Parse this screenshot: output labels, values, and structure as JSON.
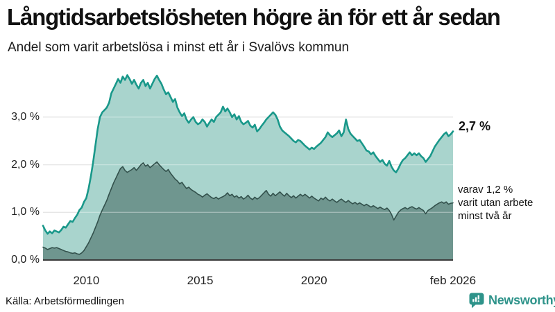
{
  "header": {
    "title": "Långtidsarbetslösheten högre än för ett år sedan",
    "subtitle": "Andel som varit arbetslösa i minst ett år i Svalövs kommun"
  },
  "footer": {
    "source": "Källa: Arbetsförmedlingen",
    "brand": "Newsworthy"
  },
  "colors": {
    "accent_teal": "#19988a",
    "fill_light": "#a9d4cd",
    "fill_dark": "#6f968f",
    "line_dark": "#33514c",
    "grid": "#d9d9d9",
    "axis_baseline": "#3b3b3b",
    "brand_teal": "#2e938a",
    "text": "#111111"
  },
  "chart_data": {
    "type": "area",
    "title": "Långtidsarbetslösheten högre än för ett år sedan",
    "subtitle": "Andel som varit arbetslösa i minst ett år i Svalövs kommun",
    "x_unit": "year (monthly observations)",
    "x_range": [
      2008.1,
      2026.1
    ],
    "x_step": 0.1,
    "ylim": [
      0,
      3.95
    ],
    "grid": true,
    "legend": "none (direct labels at line ends)",
    "x_tick_labels": [
      {
        "label": "2010",
        "year": 2010.0
      },
      {
        "label": "2015",
        "year": 2015.0
      },
      {
        "label": "2020",
        "year": 2020.0
      },
      {
        "label": "feb 2026",
        "year": 2026.1
      }
    ],
    "y_tick_labels": [
      {
        "label": "0,0 %",
        "value": 0
      },
      {
        "label": "1,0 %",
        "value": 1
      },
      {
        "label": "2,0 %",
        "value": 2
      },
      {
        "label": "3,0 %",
        "value": 3
      }
    ],
    "annotations": {
      "latest": "2,7 %",
      "secondary": [
        "varav 1,2 %",
        "varit utan arbete",
        "minst två år"
      ]
    },
    "series": [
      {
        "name": "arbetslösa minst ett år",
        "line_color": "#19988a",
        "fill_color": "#a9d4cd",
        "line_width": 2.6,
        "latest_value_pct": 2.7,
        "values": [
          0.72,
          0.62,
          0.55,
          0.6,
          0.56,
          0.62,
          0.6,
          0.58,
          0.63,
          0.7,
          0.68,
          0.75,
          0.82,
          0.8,
          0.88,
          0.95,
          1.05,
          1.1,
          1.22,
          1.3,
          1.5,
          1.75,
          2.05,
          2.4,
          2.75,
          3.0,
          3.1,
          3.15,
          3.2,
          3.3,
          3.5,
          3.6,
          3.7,
          3.8,
          3.72,
          3.85,
          3.78,
          3.88,
          3.8,
          3.7,
          3.78,
          3.68,
          3.6,
          3.72,
          3.78,
          3.65,
          3.72,
          3.6,
          3.7,
          3.8,
          3.87,
          3.78,
          3.7,
          3.58,
          3.48,
          3.52,
          3.42,
          3.32,
          3.38,
          3.2,
          3.1,
          3.02,
          3.08,
          2.95,
          2.88,
          2.95,
          3.0,
          2.9,
          2.85,
          2.88,
          2.95,
          2.9,
          2.8,
          2.88,
          2.95,
          2.9,
          3.0,
          3.05,
          3.1,
          3.22,
          3.12,
          3.18,
          3.1,
          3.0,
          3.06,
          2.95,
          3.02,
          2.9,
          2.85,
          2.88,
          2.92,
          2.82,
          2.78,
          2.84,
          2.7,
          2.75,
          2.82,
          2.88,
          2.95,
          3.0,
          3.05,
          3.1,
          3.05,
          2.95,
          2.8,
          2.72,
          2.68,
          2.64,
          2.6,
          2.55,
          2.5,
          2.47,
          2.52,
          2.5,
          2.45,
          2.4,
          2.36,
          2.32,
          2.36,
          2.33,
          2.38,
          2.42,
          2.46,
          2.52,
          2.58,
          2.68,
          2.62,
          2.58,
          2.62,
          2.66,
          2.72,
          2.6,
          2.68,
          2.95,
          2.75,
          2.65,
          2.6,
          2.55,
          2.5,
          2.52,
          2.45,
          2.38,
          2.3,
          2.28,
          2.22,
          2.26,
          2.18,
          2.12,
          2.06,
          2.1,
          2.02,
          1.98,
          2.08,
          1.96,
          1.88,
          1.84,
          1.92,
          2.02,
          2.1,
          2.14,
          2.2,
          2.26,
          2.2,
          2.24,
          2.2,
          2.24,
          2.18,
          2.14,
          2.06,
          2.12,
          2.18,
          2.28,
          2.38,
          2.45,
          2.52,
          2.58,
          2.64,
          2.68,
          2.6,
          2.64,
          2.7
        ]
      },
      {
        "name": "varav utan arbete minst två år",
        "line_color": "#33514c",
        "fill_color": "#6f968f",
        "line_width": 1.6,
        "latest_value_pct": 1.2,
        "values": [
          0.27,
          0.25,
          0.22,
          0.24,
          0.26,
          0.25,
          0.26,
          0.24,
          0.22,
          0.2,
          0.18,
          0.17,
          0.15,
          0.14,
          0.15,
          0.13,
          0.12,
          0.15,
          0.2,
          0.28,
          0.36,
          0.46,
          0.56,
          0.68,
          0.8,
          0.94,
          1.05,
          1.15,
          1.25,
          1.38,
          1.5,
          1.62,
          1.72,
          1.82,
          1.92,
          1.96,
          1.88,
          1.84,
          1.87,
          1.9,
          1.94,
          1.88,
          1.94,
          2.0,
          2.04,
          1.97,
          2.0,
          1.94,
          1.98,
          2.02,
          2.06,
          2.0,
          1.95,
          1.9,
          1.86,
          1.9,
          1.82,
          1.76,
          1.7,
          1.66,
          1.6,
          1.63,
          1.56,
          1.5,
          1.53,
          1.48,
          1.45,
          1.42,
          1.38,
          1.36,
          1.32,
          1.36,
          1.39,
          1.35,
          1.31,
          1.29,
          1.32,
          1.28,
          1.31,
          1.33,
          1.36,
          1.41,
          1.35,
          1.38,
          1.32,
          1.35,
          1.3,
          1.33,
          1.28,
          1.31,
          1.36,
          1.3,
          1.27,
          1.32,
          1.28,
          1.31,
          1.36,
          1.41,
          1.46,
          1.38,
          1.34,
          1.4,
          1.35,
          1.39,
          1.43,
          1.38,
          1.34,
          1.4,
          1.35,
          1.31,
          1.35,
          1.3,
          1.34,
          1.38,
          1.34,
          1.38,
          1.34,
          1.3,
          1.34,
          1.3,
          1.27,
          1.24,
          1.3,
          1.27,
          1.32,
          1.27,
          1.24,
          1.28,
          1.24,
          1.21,
          1.25,
          1.28,
          1.24,
          1.21,
          1.25,
          1.21,
          1.18,
          1.21,
          1.17,
          1.2,
          1.17,
          1.14,
          1.17,
          1.14,
          1.11,
          1.14,
          1.11,
          1.08,
          1.11,
          1.08,
          1.06,
          1.09,
          1.04,
          0.96,
          0.84,
          0.92,
          1.0,
          1.05,
          1.08,
          1.1,
          1.07,
          1.1,
          1.12,
          1.09,
          1.07,
          1.1,
          1.07,
          1.04,
          0.97,
          1.04,
          1.07,
          1.1,
          1.14,
          1.17,
          1.2,
          1.22,
          1.19,
          1.22,
          1.17,
          1.19,
          1.2
        ]
      }
    ]
  }
}
